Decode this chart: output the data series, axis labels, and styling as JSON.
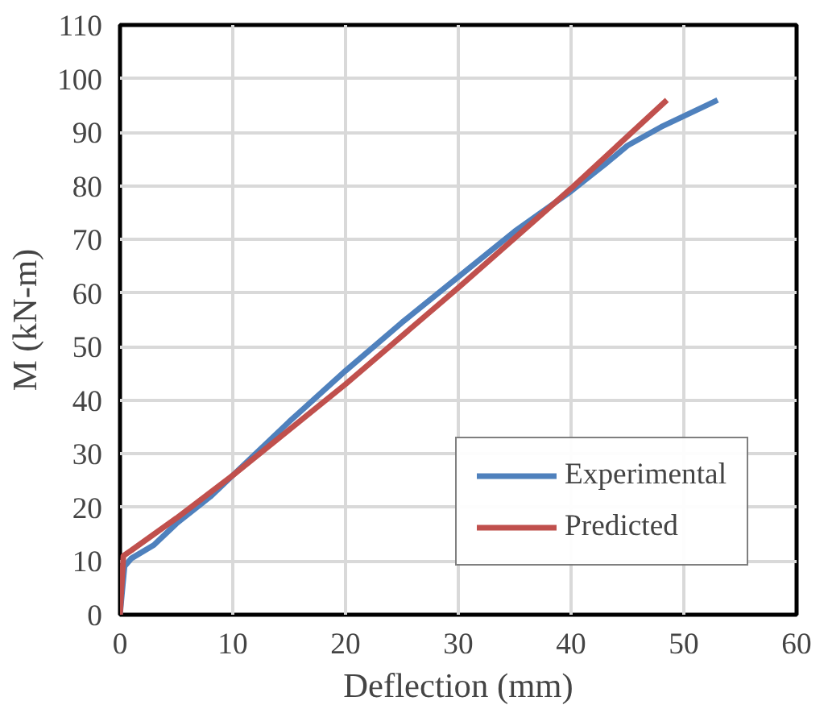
{
  "chart_data": {
    "type": "line",
    "xlabel": "Deflection (mm)",
    "ylabel": "M (kN-m)",
    "xlim": [
      0,
      60
    ],
    "ylim": [
      0,
      110
    ],
    "xticks": [
      0,
      10,
      20,
      30,
      40,
      50,
      60
    ],
    "yticks": [
      0,
      10,
      20,
      30,
      40,
      50,
      60,
      70,
      80,
      90,
      100,
      110
    ],
    "grid": true,
    "legend": "bottom right",
    "marker": "none",
    "line_style": "solid",
    "series": [
      {
        "name": "Experimental",
        "color": "#4f81bd",
        "x": [
          0,
          0.4,
          1,
          3,
          5,
          8,
          10,
          15,
          20,
          25,
          30,
          35,
          40,
          43,
          45,
          48,
          50,
          52,
          53
        ],
        "values": [
          0,
          9,
          10.5,
          13,
          17,
          22,
          26,
          36,
          45.5,
          54.5,
          63,
          71.5,
          79,
          84,
          87.5,
          91,
          93,
          95,
          96
        ]
      },
      {
        "name": "Predicted",
        "color": "#c0504d",
        "x": [
          0,
          0.3,
          1,
          3,
          5,
          10,
          20,
          30,
          40,
          48.5
        ],
        "values": [
          0,
          11,
          12,
          15,
          18,
          26,
          43,
          61,
          79.5,
          96
        ]
      }
    ]
  }
}
